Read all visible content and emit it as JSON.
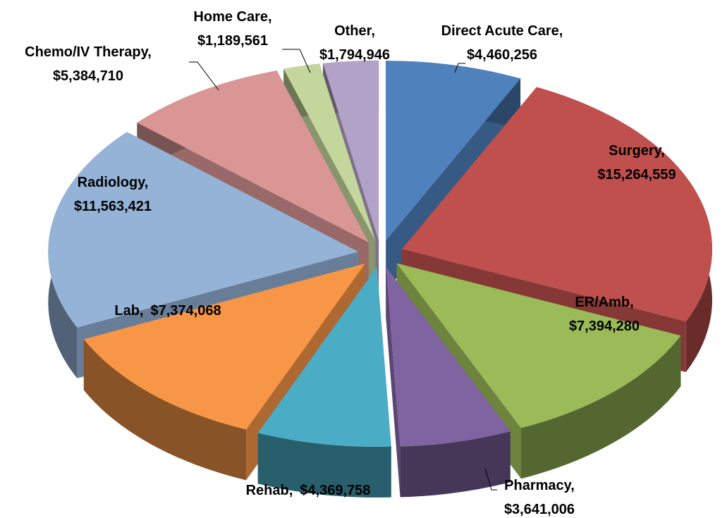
{
  "chart_data": {
    "type": "pie3d",
    "categories": [
      "Direct Acute Care,",
      "Surgery,",
      "ER/Amb,",
      "Pharmacy,",
      "Rehab,",
      "Lab,",
      "Radiology,",
      "Chemo/IV Therapy,",
      "Home Care,",
      "Other,"
    ],
    "values": [
      4460256,
      15264559,
      7394280,
      3641006,
      4369758,
      7374068,
      11563421,
      5384710,
      1189561,
      1794946
    ],
    "value_labels": [
      "$4,460,256",
      "$15,264,559",
      "$7,394,280",
      "$3,641,006",
      "$4,369,758",
      "$7,374,068",
      "$11,563,421",
      "$5,384,710",
      "$1,189,561",
      "$1,794,946"
    ],
    "colors": [
      "#4f81bd",
      "#c0504d",
      "#9bbb59",
      "#8064a2",
      "#4bacc6",
      "#f79646",
      "#95b3d7",
      "#d99694",
      "#c3d69b",
      "#b3a2c7"
    ]
  }
}
